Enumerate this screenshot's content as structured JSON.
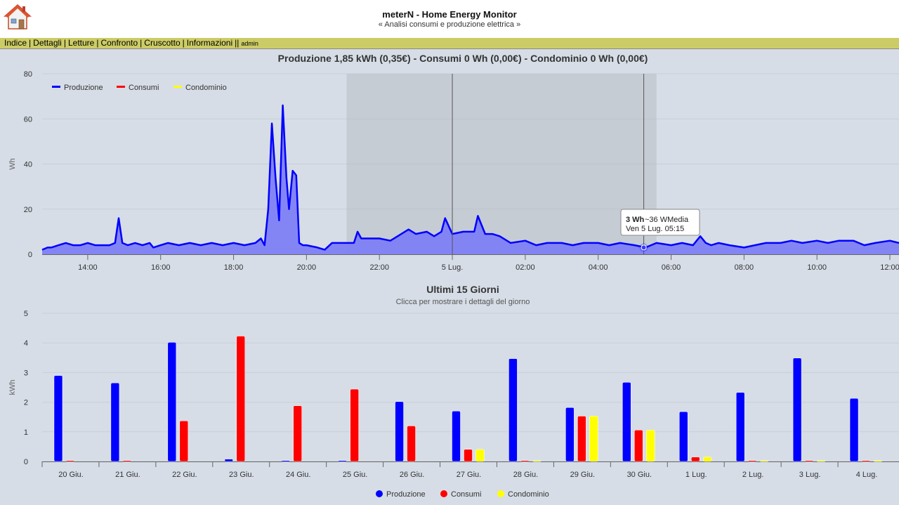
{
  "app": {
    "title": "meterN - Home Energy Monitor",
    "subtitle": "« Analisi consumi e produzione elettrica »",
    "home_icon": "house-icon"
  },
  "nav": {
    "items": [
      "Indice",
      "Dettagli",
      "Letture",
      "Confronto",
      "Cruscotto",
      "Informazioni"
    ],
    "separator": "|",
    "double_separator": "||",
    "user": "admin"
  },
  "colors": {
    "produzione": "#0000ff",
    "produzione_fill": "#7f7ff5",
    "consumi": "#ff0000",
    "condominio": "#ffff00",
    "background": "#d6dde6",
    "navbar": "#cccc66"
  },
  "chart_data": [
    {
      "type": "area",
      "title": "Produzione 1,85 kWh (0,35€) - Consumi 0 Wh (0,00€) - Condominio 0 Wh (0,00€)",
      "ylabel": "Wh",
      "ylim": [
        0,
        80
      ],
      "yticks": [
        "0",
        "20",
        "40",
        "60",
        "80"
      ],
      "xticks": [
        "14:00",
        "16:00",
        "18:00",
        "20:00",
        "22:00",
        "5 Lug.",
        "02:00",
        "04:00",
        "06:00",
        "08:00",
        "10:00",
        "12:00"
      ],
      "xlim_hours": [
        12.75,
        36.25
      ],
      "legend_placement": "top-left",
      "legend": [
        "Produzione",
        "Consumi",
        "Condominio"
      ],
      "series": [
        {
          "name": "Produzione",
          "x_hours": [
            12.75,
            12.9,
            13.0,
            13.2,
            13.4,
            13.6,
            13.8,
            14.0,
            14.2,
            14.4,
            14.6,
            14.75,
            14.85,
            14.95,
            15.1,
            15.3,
            15.5,
            15.7,
            15.8,
            16.0,
            16.2,
            16.5,
            16.8,
            17.1,
            17.4,
            17.7,
            18.0,
            18.3,
            18.6,
            18.75,
            18.85,
            18.95,
            19.05,
            19.15,
            19.25,
            19.35,
            19.45,
            19.52,
            19.62,
            19.72,
            19.8,
            19.9,
            20.0,
            20.3,
            20.5,
            20.7,
            21.0,
            21.3,
            21.4,
            21.5,
            21.7,
            22.0,
            22.3,
            22.6,
            22.8,
            23.0,
            23.3,
            23.5,
            23.7,
            23.8,
            24.0,
            24.3,
            24.6,
            24.7,
            24.9,
            25.1,
            25.3,
            25.6,
            26.0,
            26.3,
            26.6,
            27.0,
            27.3,
            27.6,
            28.0,
            28.3,
            28.6,
            29.0,
            29.3,
            29.6,
            30.0,
            30.3,
            30.6,
            30.8,
            30.95,
            31.1,
            31.3,
            31.6,
            32.0,
            32.3,
            32.6,
            33.0,
            33.3,
            33.6,
            34.0,
            34.3,
            34.6,
            35.0,
            35.3,
            35.6,
            36.0,
            36.25
          ],
          "y": [
            2,
            3,
            3,
            4,
            5,
            4,
            4,
            5,
            4,
            4,
            4,
            5,
            16,
            5,
            4,
            5,
            4,
            5,
            3,
            4,
            5,
            4,
            5,
            4,
            5,
            4,
            5,
            4,
            5,
            7,
            4,
            20,
            58,
            34,
            15,
            66,
            34,
            20,
            37,
            35,
            5,
            4,
            4,
            3,
            2,
            5,
            5,
            5,
            10,
            7,
            7,
            7,
            6,
            9,
            11,
            9,
            10,
            8,
            10,
            16,
            9,
            10,
            10,
            17,
            9,
            9,
            8,
            5,
            6,
            4,
            5,
            5,
            4,
            5,
            5,
            4,
            5,
            4,
            3,
            5,
            4,
            5,
            4,
            8,
            5,
            4,
            5,
            4,
            3,
            4,
            5,
            5,
            6,
            5,
            6,
            5,
            6,
            6,
            4,
            5,
            6,
            5
          ],
          "peaks": [
            {
              "x": 19.2,
              "y": 58
            },
            {
              "x": 19.47,
              "y": 66
            },
            {
              "x": 19.73,
              "y": 37
            },
            {
              "x": 14.85,
              "y": 16
            }
          ]
        },
        {
          "name": "Consumi",
          "values": "0"
        },
        {
          "name": "Condominio",
          "values": "0"
        }
      ],
      "selection_band_hours": [
        21.1,
        29.6
      ],
      "crosshair_hours": [
        24.0,
        29.25
      ],
      "tooltip": {
        "value": "3 Wh",
        "extra": "~36 WMedia",
        "time": "Ven 5 Lug. 05:15",
        "x_hour": 29.25,
        "y": 3
      }
    },
    {
      "type": "bar",
      "title": "Ultimi 15 Giorni",
      "subtitle": "Clicca per mostrare i dettagli del giorno",
      "ylabel": "kWh",
      "ylim": [
        0,
        5
      ],
      "yticks": [
        "0",
        "1",
        "2",
        "3",
        "4",
        "5"
      ],
      "categories": [
        "20 Giu.",
        "21 Giu.",
        "22 Giu.",
        "23 Giu.",
        "24 Giu.",
        "25 Giu.",
        "26 Giu.",
        "27 Giu.",
        "28 Giu.",
        "29 Giu.",
        "30 Giu.",
        "1 Lug.",
        "2 Lug.",
        "3 Lug.",
        "4 Lug."
      ],
      "legend_placement": "bottom-center",
      "series": [
        {
          "name": "Produzione",
          "values": [
            2.9,
            2.65,
            4.02,
            0.08,
            0.03,
            0.03,
            2.02,
            1.7,
            3.47,
            1.82,
            2.67,
            1.68,
            2.33,
            3.49,
            2.13
          ]
        },
        {
          "name": "Consumi",
          "values": [
            0.03,
            0.03,
            1.37,
            4.23,
            1.88,
            2.44,
            1.2,
            0.41,
            0.03,
            1.53,
            1.06,
            0.15,
            0.03,
            0.03,
            0.03
          ]
        },
        {
          "name": "Condominio",
          "values": [
            0,
            0,
            0,
            0,
            0,
            0,
            0,
            0.41,
            0.03,
            1.53,
            1.06,
            0.15,
            0.03,
            0.03,
            0.03
          ]
        }
      ]
    }
  ]
}
